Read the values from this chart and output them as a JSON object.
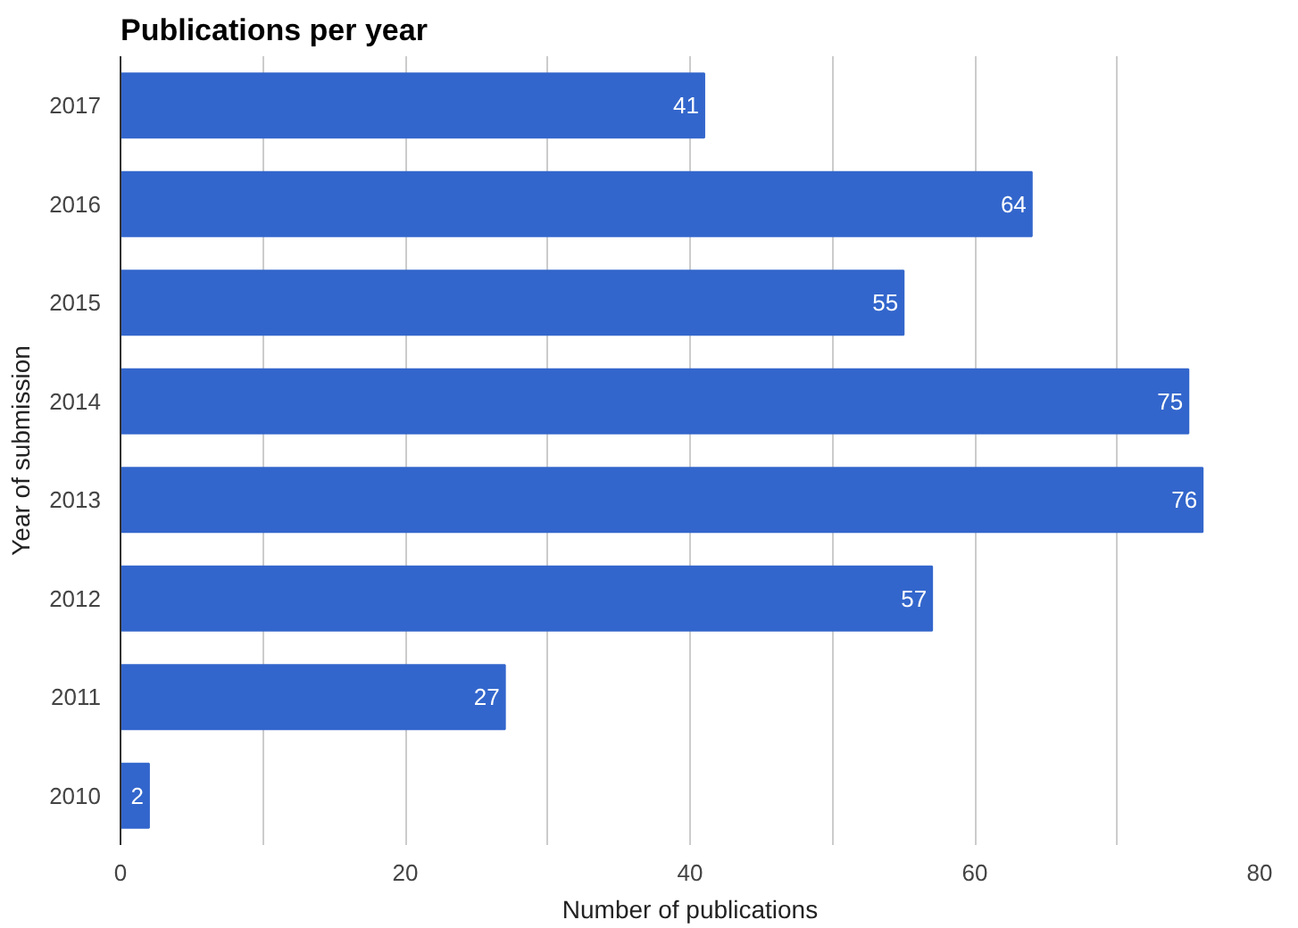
{
  "chart_data": {
    "type": "bar",
    "orientation": "horizontal",
    "title": "Publications per year",
    "xlabel": "Number of publications",
    "ylabel": "Year of submission",
    "categories": [
      "2017",
      "2016",
      "2015",
      "2014",
      "2013",
      "2012",
      "2011",
      "2010"
    ],
    "values": [
      41,
      64,
      55,
      75,
      76,
      57,
      27,
      2
    ],
    "color": "#3366cc",
    "xlim": [
      0,
      80
    ],
    "xticks": [
      0,
      {
        "value": 10,
        "label": null
      },
      20,
      {
        "value": 30,
        "label": null
      },
      40,
      {
        "value": 50,
        "label": null
      },
      60,
      {
        "value": 70,
        "label": null
      },
      80
    ],
    "grid": "x",
    "data_labels": true
  }
}
